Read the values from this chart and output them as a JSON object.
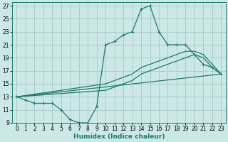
{
  "xlabel": "Humidex (Indice chaleur)",
  "bg_color": "#cce8e6",
  "grid_color": "#aaccca",
  "line_color": "#1a7a6e",
  "xlim": [
    -0.5,
    23.5
  ],
  "ylim": [
    9,
    27.5
  ],
  "xticks": [
    0,
    1,
    2,
    3,
    4,
    5,
    6,
    7,
    8,
    9,
    10,
    11,
    12,
    13,
    14,
    15,
    16,
    17,
    18,
    19,
    20,
    21,
    22,
    23
  ],
  "yticks": [
    9,
    11,
    13,
    15,
    17,
    19,
    21,
    23,
    25,
    27
  ],
  "series1_x": [
    0,
    1,
    2,
    3,
    4,
    5,
    6,
    7,
    8,
    9,
    10,
    11,
    12,
    13,
    14,
    15,
    16,
    17,
    18,
    19,
    20,
    21,
    22,
    23
  ],
  "series1_y": [
    13,
    12.5,
    12,
    12,
    12,
    11,
    9.5,
    9,
    9,
    11.5,
    21,
    21.5,
    22.5,
    23,
    26.5,
    27,
    23,
    21,
    21,
    21,
    19.5,
    18,
    17.5,
    16.5
  ],
  "series2_x": [
    0,
    10,
    11,
    12,
    13,
    14,
    15,
    16,
    17,
    18,
    19,
    20,
    21,
    22,
    23
  ],
  "series2_y": [
    13,
    15,
    15.5,
    16,
    16.5,
    17.5,
    18,
    18.5,
    19,
    19.5,
    20,
    20,
    19.5,
    18,
    16.5
  ],
  "series3_x": [
    0,
    10,
    11,
    12,
    13,
    14,
    15,
    16,
    17,
    18,
    19,
    20,
    21,
    22,
    23
  ],
  "series3_y": [
    13,
    14,
    14.5,
    15,
    15.5,
    16.5,
    17,
    17.5,
    18,
    18.5,
    19,
    19.5,
    19,
    17.5,
    16.5
  ],
  "series4_x": [
    0,
    23
  ],
  "series4_y": [
    13,
    16.5
  ]
}
